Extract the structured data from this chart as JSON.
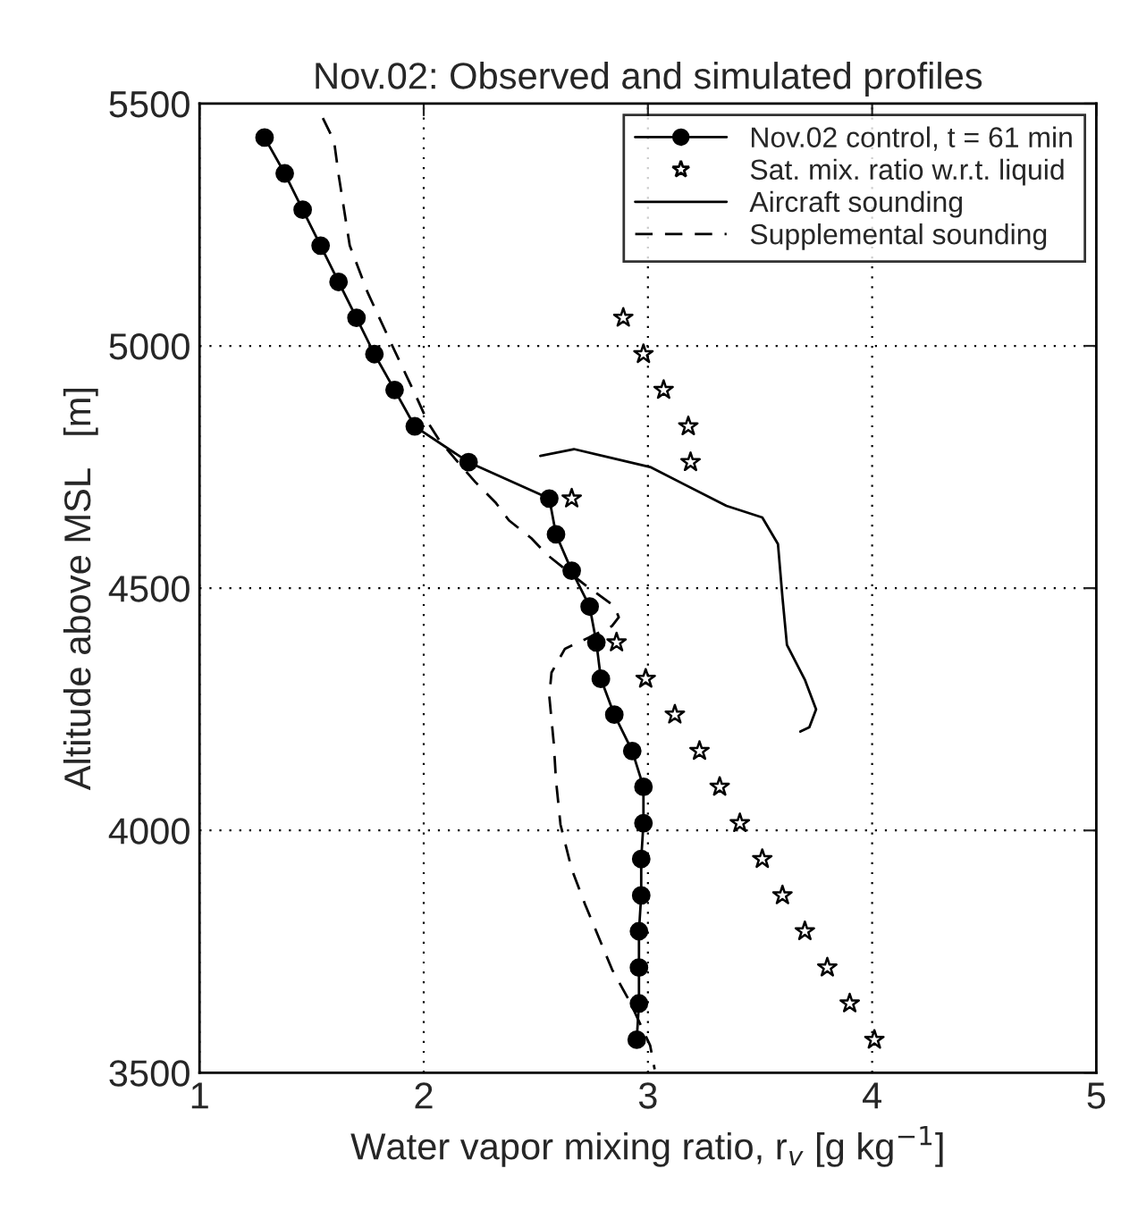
{
  "chart_data": {
    "type": "line",
    "title": "Nov.02: Observed and simulated profiles",
    "xlabel": "Water vapor mixing ratio, r$_{v}$ [g kg$^{−1}$]",
    "ylabel": "Altitude above MSL   [m]",
    "xlim": [
      1,
      5
    ],
    "xticks": [
      1,
      2,
      3,
      4,
      5
    ],
    "ylim": [
      3500,
      5500
    ],
    "yticks": [
      3500,
      4000,
      4500,
      5000,
      5500
    ],
    "grid": true,
    "legend": "top right",
    "series": [
      {
        "name": "Nov.02 control, t = 61 min",
        "color": "#000000",
        "marker": "circle",
        "line_style": "solid",
        "x": [
          1.29,
          1.38,
          1.46,
          1.54,
          1.62,
          1.7,
          1.78,
          1.87,
          1.96,
          2.2,
          2.56,
          2.59,
          2.66,
          2.74,
          2.77,
          2.79,
          2.85,
          2.93,
          2.98,
          2.98,
          2.97,
          2.97,
          2.96,
          2.96,
          2.96,
          2.95
        ],
        "values": [
          5430,
          5356,
          5281,
          5207,
          5132,
          5058,
          4983,
          4909,
          4834,
          4760,
          4685,
          4611,
          4536,
          4462,
          4388,
          4313,
          4239,
          4164,
          4090,
          4015,
          3941,
          3866,
          3792,
          3717,
          3643,
          3568
        ]
      },
      {
        "name": "Sat. mix. ratio w.r.t. liquid",
        "type": "scatter",
        "color": "#000000",
        "marker": "star",
        "x": [
          2.89,
          2.98,
          3.07,
          3.18,
          3.19,
          2.66,
          2.86,
          2.99,
          3.12,
          3.23,
          3.32,
          3.41,
          3.51,
          3.6,
          3.7,
          3.8,
          3.9,
          4.01
        ],
        "values": [
          5058,
          4983,
          4909,
          4834,
          4760,
          4685,
          4388,
          4313,
          4239,
          4164,
          4090,
          4015,
          3941,
          3866,
          3792,
          3717,
          3643,
          3568
        ]
      },
      {
        "name": "Aircraft sounding",
        "color": "#000000",
        "marker": "none",
        "line_style": "solid",
        "x": [
          2.52,
          2.67,
          3.01,
          3.35,
          3.51,
          3.58,
          3.6,
          3.62,
          3.7,
          3.75,
          3.72,
          3.68
        ],
        "values": [
          4773,
          4787,
          4750,
          4670,
          4646,
          4591,
          4481,
          4383,
          4311,
          4250,
          4213,
          4204
        ]
      },
      {
        "name": "Supplemental sounding",
        "color": "#000000",
        "marker": "none",
        "line_style": "dashed",
        "x": [
          1.55,
          1.6,
          1.62,
          1.67,
          1.75,
          1.86,
          1.96,
          2.02,
          2.07,
          2.16,
          2.23,
          2.32,
          2.38,
          2.48,
          2.55,
          2.71,
          2.85,
          2.87,
          2.84,
          2.74,
          2.63,
          2.57,
          2.56,
          2.58,
          2.59,
          2.61,
          2.66,
          2.72,
          2.84,
          2.92,
          2.95,
          3.01,
          3.03
        ],
        "values": [
          5470,
          5423,
          5354,
          5207,
          5110,
          5000,
          4902,
          4841,
          4805,
          4756,
          4719,
          4677,
          4640,
          4603,
          4569,
          4510,
          4463,
          4440,
          4422,
          4399,
          4375,
          4326,
          4277,
          4180,
          4103,
          4012,
          3920,
          3847,
          3713,
          3646,
          3616,
          3556,
          3507
        ]
      }
    ]
  }
}
